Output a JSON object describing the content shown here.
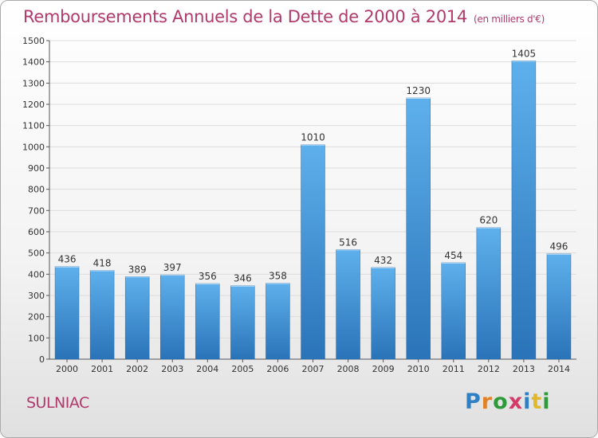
{
  "chart_data": {
    "type": "bar",
    "title": "Remboursements Annuels de la Dette de 2000 à 2014",
    "subtitle": "(en milliers d'€)",
    "categories": [
      "2000",
      "2001",
      "2002",
      "2003",
      "2004",
      "2005",
      "2006",
      "2007",
      "2008",
      "2009",
      "2010",
      "2011",
      "2012",
      "2013",
      "2014"
    ],
    "values": [
      436,
      418,
      389,
      397,
      356,
      346,
      358,
      1010,
      516,
      432,
      1230,
      454,
      620,
      1405,
      496
    ],
    "ylim": [
      0,
      1500
    ],
    "yticks": [
      0,
      100,
      200,
      300,
      400,
      500,
      600,
      700,
      800,
      900,
      1000,
      1100,
      1200,
      1300,
      1400,
      1500
    ],
    "xlabel": "",
    "ylabel": "",
    "grid": true,
    "legend": "none",
    "bar_color": "#3a8fd6",
    "bar_color_light": "#5eb0ec",
    "bar_color_dark": "#2a73b8"
  },
  "footer": {
    "place": "SULNIAC",
    "logo_letters": [
      {
        "ch": "P",
        "color": "#2e7fc4"
      },
      {
        "ch": "r",
        "color": "#e0822a"
      },
      {
        "ch": "o",
        "color": "#2e9a3a"
      },
      {
        "ch": "x",
        "color": "#d63a6a"
      },
      {
        "ch": "i",
        "color": "#2e7fc4"
      },
      {
        "ch": "t",
        "color": "#e0b82a"
      },
      {
        "ch": "i",
        "color": "#2e9a3a"
      }
    ]
  }
}
